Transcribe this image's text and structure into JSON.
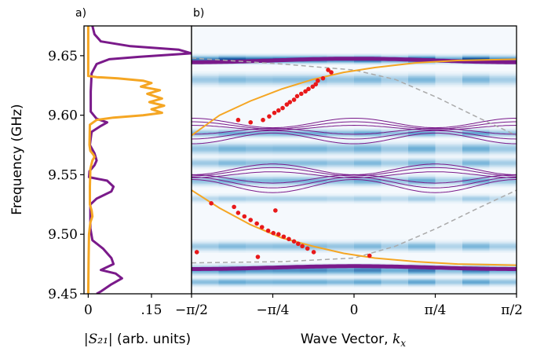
{
  "chart_data": [
    {
      "panel": "a)",
      "type": "line",
      "xlabel": "|S21| (arb. units)",
      "xlabel_math": "|S₂₁|",
      "xlabel_rest": " (arb. units)",
      "ylabel": "Frequency (GHz)",
      "xlim": [
        -0.01,
        0.245
      ],
      "ylim": [
        9.45,
        9.675
      ],
      "xticks": [
        0,
        0.15
      ],
      "xtick_labels": [
        "0",
        ".15"
      ],
      "yticks": [
        9.45,
        9.5,
        9.55,
        9.6,
        9.65
      ],
      "ytick_labels": [
        "9.45",
        "9.50",
        "9.55",
        "9.60",
        "9.65"
      ],
      "series": [
        {
          "color": "#7a1a8a",
          "points": [
            [
              0.01,
              9.675
            ],
            [
              0.015,
              9.668
            ],
            [
              0.03,
              9.662
            ],
            [
              0.1,
              9.658
            ],
            [
              0.215,
              9.655
            ],
            [
              0.245,
              9.652
            ],
            [
              0.12,
              9.649
            ],
            [
              0.05,
              9.647
            ],
            [
              0.02,
              9.643
            ],
            [
              0.008,
              9.635
            ],
            [
              0.006,
              9.62
            ],
            [
              0.006,
              9.603
            ],
            [
              0.02,
              9.597
            ],
            [
              0.045,
              9.594
            ],
            [
              0.03,
              9.591
            ],
            [
              0.008,
              9.586
            ],
            [
              0.004,
              9.575
            ],
            [
              0.015,
              9.568
            ],
            [
              0.02,
              9.562
            ],
            [
              0.015,
              9.558
            ],
            [
              0.003,
              9.553
            ],
            [
              0.002,
              9.548
            ],
            [
              0.045,
              9.545
            ],
            [
              0.06,
              9.54
            ],
            [
              0.055,
              9.536
            ],
            [
              0.02,
              9.53
            ],
            [
              0.005,
              9.525
            ],
            [
              0.005,
              9.505
            ],
            [
              0.01,
              9.495
            ],
            [
              0.035,
              9.488
            ],
            [
              0.055,
              9.48
            ],
            [
              0.06,
              9.475
            ],
            [
              0.03,
              9.47
            ],
            [
              0.065,
              9.467
            ],
            [
              0.08,
              9.463
            ],
            [
              0.055,
              9.458
            ],
            [
              0.03,
              9.452
            ],
            [
              0.02,
              9.45
            ]
          ]
        },
        {
          "color": "#f5a623",
          "points": [
            [
              0.0,
              9.675
            ],
            [
              0.0,
              9.64
            ],
            [
              0.0,
              9.633
            ],
            [
              0.02,
              9.632
            ],
            [
              0.07,
              9.631
            ],
            [
              0.13,
              9.629
            ],
            [
              0.15,
              9.627
            ],
            [
              0.125,
              9.624
            ],
            [
              0.17,
              9.621
            ],
            [
              0.14,
              9.618
            ],
            [
              0.175,
              9.614
            ],
            [
              0.145,
              9.611
            ],
            [
              0.18,
              9.608
            ],
            [
              0.15,
              9.605
            ],
            [
              0.175,
              9.602
            ],
            [
              0.13,
              9.6
            ],
            [
              0.06,
              9.598
            ],
            [
              0.02,
              9.596
            ],
            [
              0.004,
              9.592
            ],
            [
              0.003,
              9.575
            ],
            [
              0.005,
              9.57
            ],
            [
              0.012,
              9.567
            ],
            [
              0.015,
              9.565
            ],
            [
              0.01,
              9.562
            ],
            [
              0.005,
              9.555
            ],
            [
              0.004,
              9.54
            ],
            [
              0.004,
              9.525
            ],
            [
              0.008,
              9.52
            ],
            [
              0.01,
              9.515
            ],
            [
              0.005,
              9.51
            ],
            [
              0.002,
              9.5
            ],
            [
              0.001,
              9.48
            ],
            [
              0.0,
              9.45
            ]
          ]
        }
      ]
    },
    {
      "panel": "b)",
      "type": "heatmap",
      "xlabel": "Wave Vector, kx",
      "xlabel_plain": "Wave Vector, ",
      "xlabel_math": "k",
      "xlabel_sub": "x",
      "xlim": [
        -1.5708,
        1.5708
      ],
      "ylim": [
        9.45,
        9.675
      ],
      "xticks": [
        -1.5708,
        -0.7854,
        0,
        0.7854,
        1.5708
      ],
      "xtick_labels": [
        "−π/2",
        "−π/4",
        "0",
        "π/4",
        "π/2"
      ],
      "heatmap_columns": 12,
      "heatmap_bands": [
        {
          "f": 9.647,
          "width": 0.004,
          "intensity": 1.0
        },
        {
          "f": 9.63,
          "width": 0.006,
          "intensity": 0.45
        },
        {
          "f": 9.585,
          "width": 0.004,
          "intensity": 0.55
        },
        {
          "f": 9.572,
          "width": 0.006,
          "intensity": 0.5
        },
        {
          "f": 9.56,
          "width": 0.005,
          "intensity": 0.45
        },
        {
          "f": 9.545,
          "width": 0.005,
          "intensity": 0.5
        },
        {
          "f": 9.53,
          "width": 0.004,
          "intensity": 0.3
        },
        {
          "f": 9.49,
          "width": 0.005,
          "intensity": 0.45
        },
        {
          "f": 9.47,
          "width": 0.005,
          "intensity": 0.75
        },
        {
          "f": 9.46,
          "width": 0.004,
          "intensity": 0.55
        }
      ],
      "thick_bands": [
        {
          "f0": 9.646,
          "amp": 0.0015,
          "color": "#7a1a8a"
        },
        {
          "f0": 9.472,
          "amp": 0.0012,
          "color": "#7a1a8a"
        }
      ],
      "upper_manifold": {
        "color": "#7a1a8a",
        "offsets": [
          9.5805,
          9.5835,
          9.5865,
          9.5895,
          9.5915,
          9.5935
        ],
        "amps": [
          -0.009,
          -0.007,
          -0.005,
          0.004,
          0.006,
          0.008
        ]
      },
      "lower_manifold": {
        "color": "#7a1a8a",
        "offsets": [
          9.5405,
          9.5435,
          9.5465,
          9.55,
          9.5525,
          9.5545
        ],
        "amps": [
          0.011,
          0.009,
          0.007,
          -0.005,
          -0.007,
          -0.009
        ]
      },
      "orange_upper": {
        "color": "#f5a623",
        "points": [
          [
            -1.5708,
            9.583
          ],
          [
            -1.3,
            9.6
          ],
          [
            -1.0,
            9.612
          ],
          [
            -0.7,
            9.622
          ],
          [
            -0.4,
            9.63
          ],
          [
            -0.1,
            9.636
          ],
          [
            0.2,
            9.64
          ],
          [
            0.6,
            9.644
          ],
          [
            1.0,
            9.646
          ],
          [
            1.5708,
            9.647
          ]
        ]
      },
      "orange_lower": {
        "color": "#f5a623",
        "points": [
          [
            -1.5708,
            9.537
          ],
          [
            -1.3,
            9.522
          ],
          [
            -1.0,
            9.508
          ],
          [
            -0.7,
            9.497
          ],
          [
            -0.4,
            9.49
          ],
          [
            -0.1,
            9.484
          ],
          [
            0.2,
            9.48
          ],
          [
            0.6,
            9.477
          ],
          [
            1.0,
            9.475
          ],
          [
            1.5708,
            9.474
          ]
        ]
      },
      "dashed_upper": {
        "color": "#aaaaaa",
        "points": [
          [
            -1.5708,
            9.648
          ],
          [
            -0.7,
            9.643
          ],
          [
            0,
            9.638
          ],
          [
            0.4,
            9.63
          ],
          [
            0.8,
            9.615
          ],
          [
            1.2,
            9.598
          ],
          [
            1.5708,
            9.583
          ]
        ]
      },
      "dashed_lower": {
        "color": "#aaaaaa",
        "points": [
          [
            -1.5708,
            9.476
          ],
          [
            -0.7,
            9.477
          ],
          [
            0,
            9.48
          ],
          [
            0.4,
            9.49
          ],
          [
            0.8,
            9.505
          ],
          [
            1.2,
            9.522
          ],
          [
            1.5708,
            9.537
          ]
        ]
      },
      "red_points": {
        "color": "#e8191a",
        "points": [
          [
            -0.22,
            9.636
          ],
          [
            -0.25,
            9.638
          ],
          [
            -0.3,
            9.631
          ],
          [
            -0.35,
            9.629
          ],
          [
            -0.37,
            9.626
          ],
          [
            -0.4,
            9.624
          ],
          [
            -0.44,
            9.622
          ],
          [
            -0.47,
            9.62
          ],
          [
            -0.51,
            9.618
          ],
          [
            -0.55,
            9.616
          ],
          [
            -0.58,
            9.613
          ],
          [
            -0.62,
            9.611
          ],
          [
            -0.65,
            9.609
          ],
          [
            -0.69,
            9.606
          ],
          [
            -0.73,
            9.604
          ],
          [
            -0.77,
            9.602
          ],
          [
            -0.82,
            9.599
          ],
          [
            -0.88,
            9.596
          ],
          [
            -1.0,
            9.594
          ],
          [
            -1.12,
            9.596
          ],
          [
            -1.38,
            9.526
          ],
          [
            -1.16,
            9.523
          ],
          [
            -1.12,
            9.518
          ],
          [
            -1.06,
            9.515
          ],
          [
            -1.0,
            9.512
          ],
          [
            -0.94,
            9.509
          ],
          [
            -0.89,
            9.506
          ],
          [
            -0.83,
            9.503
          ],
          [
            -0.78,
            9.501
          ],
          [
            -0.73,
            9.5
          ],
          [
            -0.68,
            9.498
          ],
          [
            -0.63,
            9.496
          ],
          [
            -0.58,
            9.494
          ],
          [
            -0.54,
            9.492
          ],
          [
            -0.5,
            9.49
          ],
          [
            -0.45,
            9.488
          ],
          [
            -0.39,
            9.485
          ],
          [
            -0.76,
            9.52
          ],
          [
            -1.52,
            9.485
          ],
          [
            -0.93,
            9.481
          ],
          [
            0.15,
            9.482
          ]
        ]
      }
    }
  ]
}
